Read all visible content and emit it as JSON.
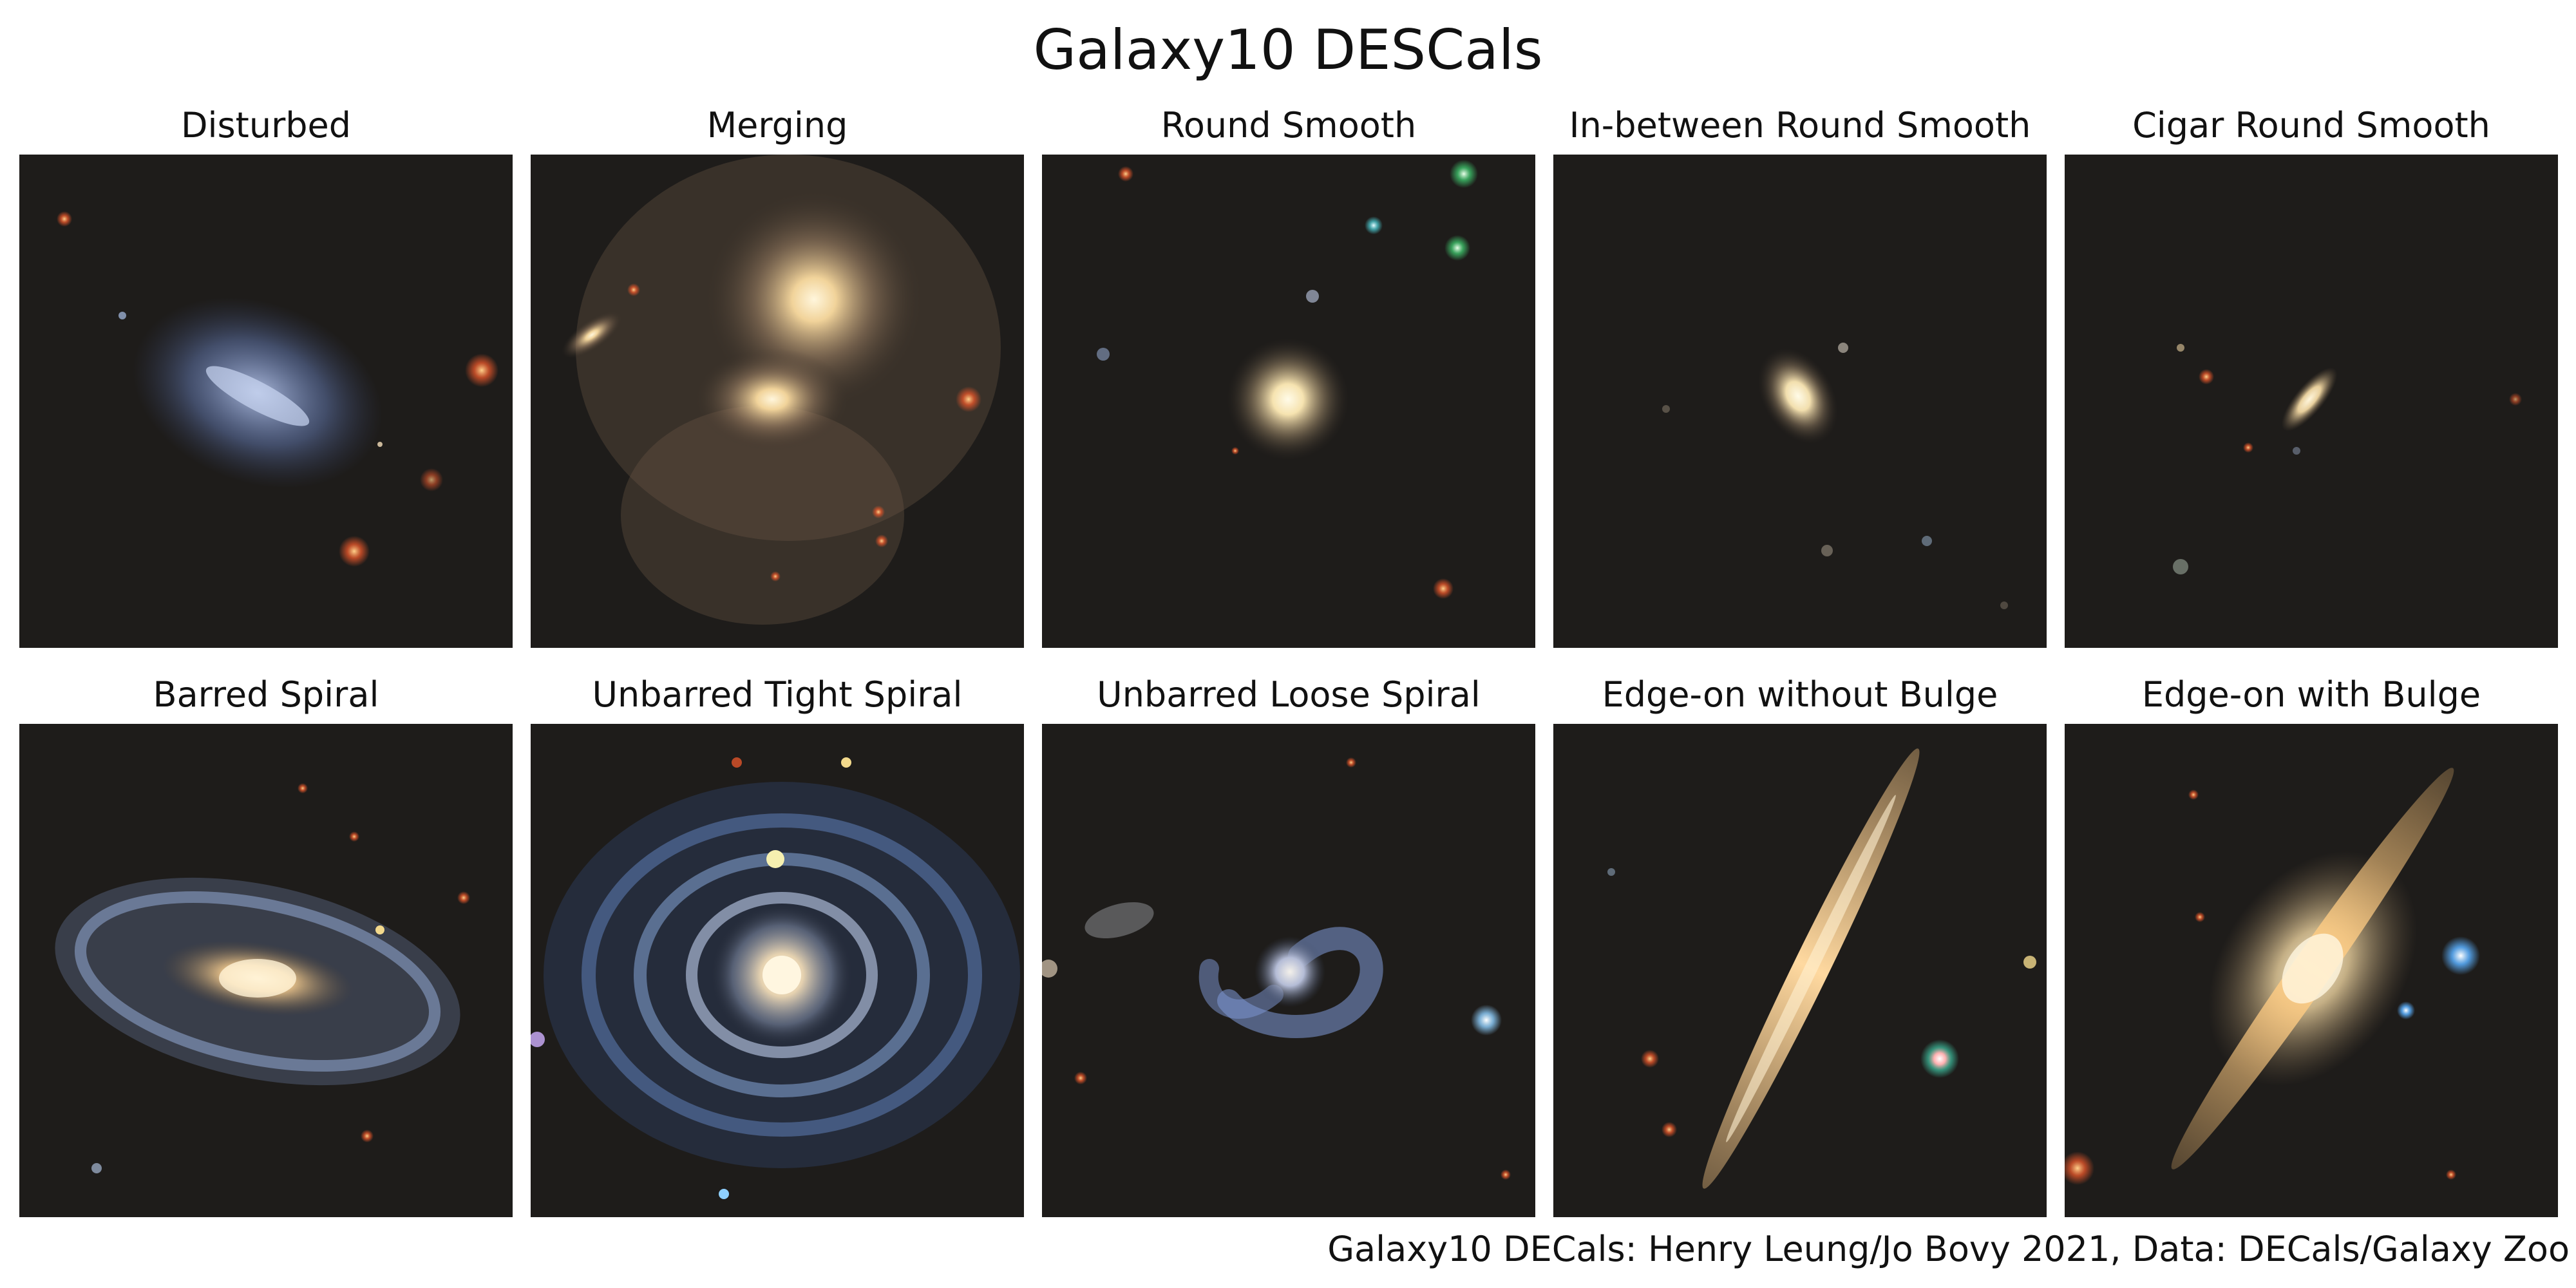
{
  "title": "Galaxy10 DESCals",
  "credit": "Galaxy10 DECals: Henry Leung/Jo Bovy 2021, Data: DECals/Galaxy Zoo",
  "panels": [
    {
      "label": "Disturbed"
    },
    {
      "label": "Merging"
    },
    {
      "label": "Round Smooth"
    },
    {
      "label": "In-between Round Smooth"
    },
    {
      "label": "Cigar Round Smooth"
    },
    {
      "label": "Barred Spiral"
    },
    {
      "label": "Unbarred Tight Spiral"
    },
    {
      "label": "Unbarred Loose Spiral"
    },
    {
      "label": "Edge-on without Bulge"
    },
    {
      "label": "Edge-on with Bulge"
    }
  ],
  "colors": {
    "sky_background": "#1e1c1a",
    "star_red": "#e0552a",
    "star_blue": "#8fd0ff",
    "galaxy_core": "#fff3d6",
    "spiral_arm": "#8aa9e0"
  }
}
